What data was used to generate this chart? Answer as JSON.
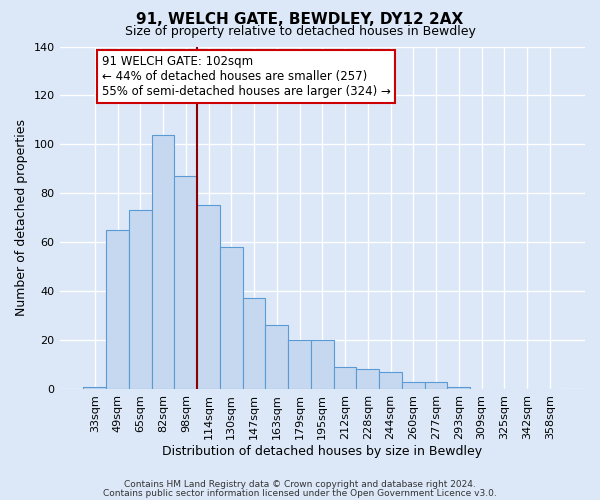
{
  "title": "91, WELCH GATE, BEWDLEY, DY12 2AX",
  "subtitle": "Size of property relative to detached houses in Bewdley",
  "xlabel": "Distribution of detached houses by size in Bewdley",
  "ylabel": "Number of detached properties",
  "bin_labels": [
    "33sqm",
    "49sqm",
    "65sqm",
    "82sqm",
    "98sqm",
    "114sqm",
    "130sqm",
    "147sqm",
    "163sqm",
    "179sqm",
    "195sqm",
    "212sqm",
    "228sqm",
    "244sqm",
    "260sqm",
    "277sqm",
    "293sqm",
    "309sqm",
    "325sqm",
    "342sqm",
    "358sqm"
  ],
  "bar_heights": [
    1,
    65,
    73,
    104,
    87,
    75,
    58,
    37,
    26,
    20,
    20,
    9,
    8,
    7,
    3,
    3,
    1,
    0,
    0,
    0,
    0
  ],
  "bar_color": "#c5d8f0",
  "bar_edge_color": "#5b9bd5",
  "vline_x_index": 4,
  "vline_color": "#8b0000",
  "ylim": [
    0,
    140
  ],
  "yticks": [
    0,
    20,
    40,
    60,
    80,
    100,
    120,
    140
  ],
  "annotation_title": "91 WELCH GATE: 102sqm",
  "annotation_line1": "← 44% of detached houses are smaller (257)",
  "annotation_line2": "55% of semi-detached houses are larger (324) →",
  "annotation_box_color": "#ffffff",
  "annotation_box_edge": "#cc0000",
  "footer1": "Contains HM Land Registry data © Crown copyright and database right 2024.",
  "footer2": "Contains public sector information licensed under the Open Government Licence v3.0.",
  "background_color": "#dce8f8",
  "plot_background": "#dce8f8",
  "grid_color": "#ffffff",
  "title_fontsize": 11,
  "subtitle_fontsize": 9,
  "axis_label_fontsize": 9,
  "tick_fontsize": 8,
  "annotation_fontsize": 8.5,
  "footer_fontsize": 6.5
}
